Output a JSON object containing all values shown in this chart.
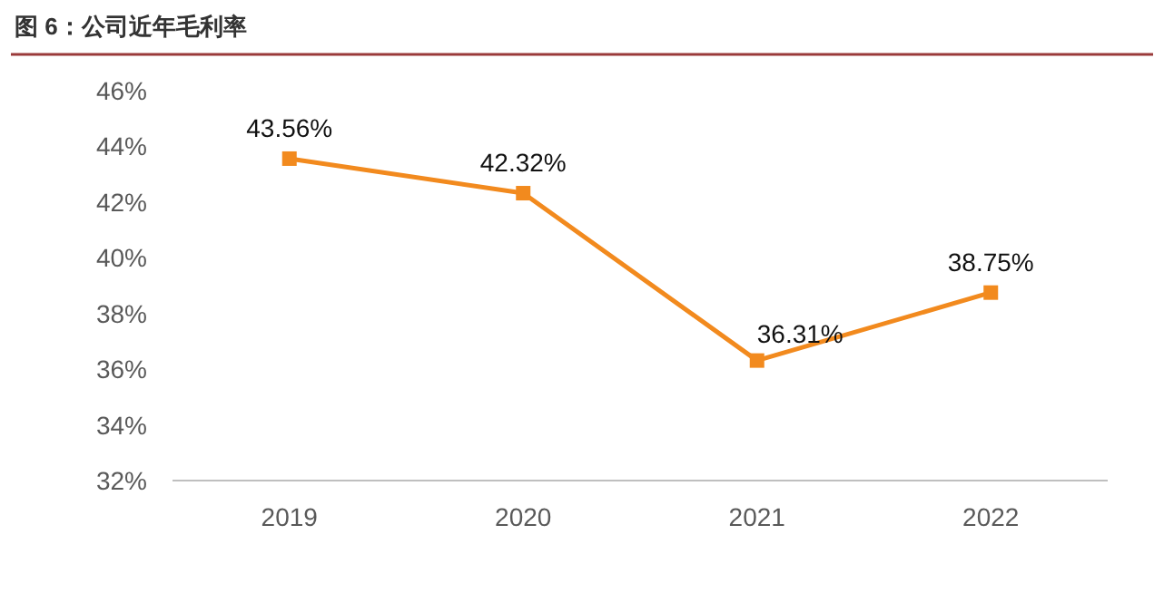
{
  "chart_data": {
    "type": "line",
    "title": "图 6：公司近年毛利率",
    "categories": [
      "2019",
      "2020",
      "2021",
      "2022"
    ],
    "series": [
      {
        "color": "#f28a1e",
        "values": [
          43.56,
          42.32,
          36.31,
          38.75
        ],
        "value_labels": [
          "43.56%",
          "42.32%",
          "36.31%",
          "38.75%"
        ]
      }
    ],
    "ylim": [
      32,
      46
    ],
    "yticks": [
      {
        "value": 32,
        "label": "32%"
      },
      {
        "value": 34,
        "label": "34%"
      },
      {
        "value": 36,
        "label": "36%"
      },
      {
        "value": 38,
        "label": "38%"
      },
      {
        "value": 40,
        "label": "40%"
      },
      {
        "value": 42,
        "label": "42%"
      },
      {
        "value": 44,
        "label": "44%"
      },
      {
        "value": 46,
        "label": "46%"
      }
    ],
    "marker": "square",
    "line_style": "solid",
    "grid": false
  }
}
